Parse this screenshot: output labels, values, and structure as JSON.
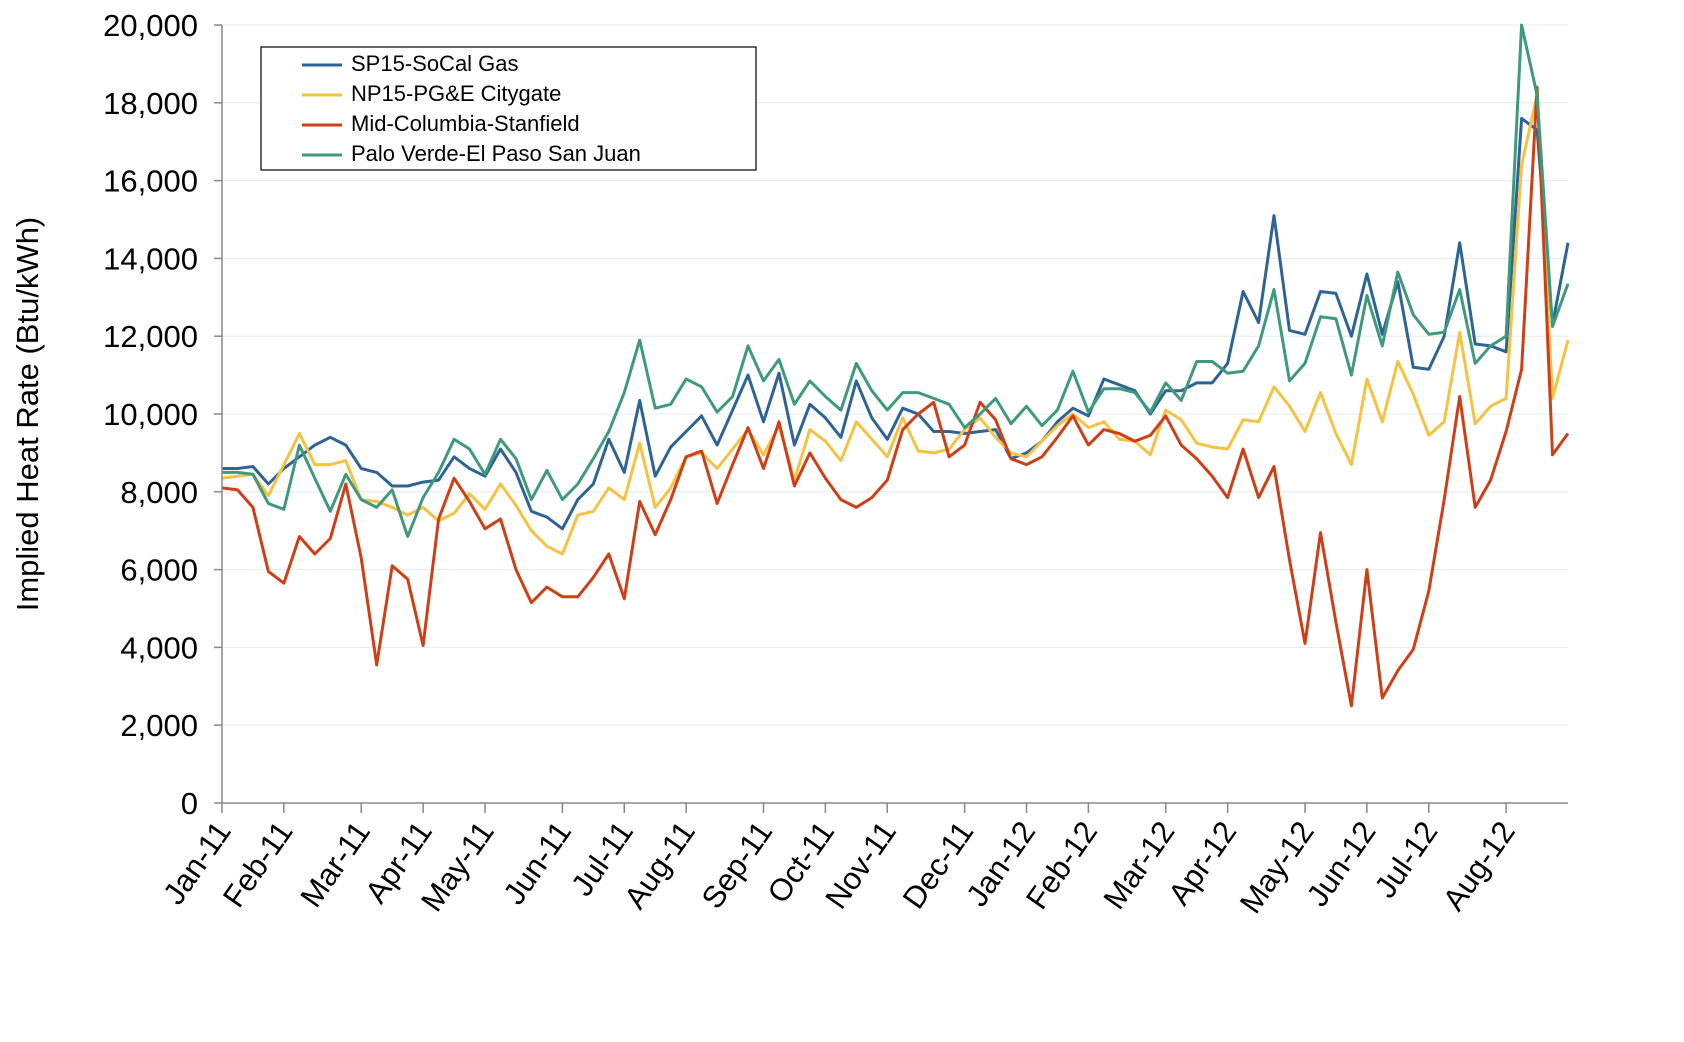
{
  "chart_data": {
    "type": "line",
    "y_label": "Implied Heat Rate (Btu/kWh)",
    "categories": [
      "Jan-11",
      null,
      null,
      null,
      "Feb-11",
      null,
      null,
      null,
      null,
      "Mar-11",
      null,
      null,
      null,
      "Apr-11",
      null,
      null,
      null,
      "May-11",
      null,
      null,
      null,
      null,
      "Jun-11",
      null,
      null,
      null,
      "Jul-11",
      null,
      null,
      null,
      "Aug-11",
      null,
      null,
      null,
      null,
      "Sep-11",
      null,
      null,
      null,
      "Oct-11",
      null,
      null,
      null,
      "Nov-11",
      null,
      null,
      null,
      null,
      "Dec-11",
      null,
      null,
      null,
      "Jan-12",
      null,
      null,
      null,
      "Feb-12",
      null,
      null,
      null,
      null,
      "Mar-12",
      null,
      null,
      null,
      "Apr-12",
      null,
      null,
      null,
      null,
      "May-12",
      null,
      null,
      null,
      "Jun-12",
      null,
      null,
      null,
      "Jul-12",
      null,
      null,
      null,
      null,
      "Aug-12",
      null,
      null,
      null,
      null
    ],
    "series": [
      {
        "name": "SP15-SoCal Gas",
        "color": "#2e6396",
        "values": [
          8600,
          8600,
          8650,
          8200,
          8600,
          8900,
          9200,
          9400,
          9200,
          8600,
          8500,
          8150,
          8150,
          8250,
          8300,
          8900,
          8600,
          8400,
          9100,
          8500,
          7500,
          7350,
          7050,
          7800,
          8200,
          9350,
          8500,
          10350,
          8400,
          9150,
          9550,
          9950,
          9200,
          10100,
          11000,
          9800,
          11050,
          9200,
          10250,
          9900,
          9400,
          10850,
          9900,
          9350,
          10150,
          10000,
          9550,
          9550,
          9500,
          9550,
          9600,
          8850,
          9000,
          9300,
          9800,
          10150,
          9950,
          10900,
          10750,
          10600,
          10000,
          10600,
          10600,
          10800,
          10800,
          11300,
          13150,
          12350,
          15100,
          12150,
          12050,
          13150,
          13100,
          12000,
          13600,
          12050,
          13400,
          11200,
          11150,
          12000,
          14400,
          11800,
          11750,
          11600,
          17600,
          17300,
          12300,
          14400
        ]
      },
      {
        "name": "NP15-PG&E Citygate",
        "color": "#f5c242",
        "values": [
          8350,
          8400,
          8450,
          7900,
          8700,
          9500,
          8700,
          8700,
          8800,
          7800,
          7750,
          7600,
          7400,
          7600,
          7250,
          7450,
          7950,
          7550,
          8200,
          7650,
          7000,
          6600,
          6400,
          7400,
          7500,
          8100,
          7800,
          9250,
          7600,
          8100,
          8900,
          9000,
          8600,
          9100,
          9600,
          8950,
          9700,
          8300,
          9600,
          9300,
          8800,
          9800,
          9350,
          8900,
          9900,
          9050,
          9000,
          9100,
          9600,
          9900,
          9400,
          9000,
          8900,
          9300,
          9700,
          10000,
          9650,
          9800,
          9350,
          9300,
          8950,
          10100,
          9850,
          9250,
          9150,
          9100,
          9850,
          9800,
          10700,
          10200,
          9550,
          10550,
          9500,
          8700,
          10900,
          9800,
          11350,
          10500,
          9450,
          9800,
          12100,
          9750,
          10200,
          10400,
          16400,
          18200,
          10400,
          11900
        ]
      },
      {
        "name": "Mid-Columbia-Stanfield",
        "color": "#cf3f17",
        "values": [
          8100,
          8050,
          7600,
          5950,
          5650,
          6850,
          6400,
          6800,
          8200,
          6300,
          3550,
          6100,
          5750,
          4050,
          7300,
          8350,
          7750,
          7050,
          7300,
          6000,
          5150,
          5550,
          5300,
          5300,
          5800,
          6400,
          5250,
          7750,
          6900,
          7800,
          8900,
          9050,
          7700,
          8700,
          9650,
          8600,
          9800,
          8150,
          9000,
          8350,
          7800,
          7600,
          7850,
          8300,
          9600,
          10000,
          10300,
          8900,
          9200,
          10300,
          9850,
          8850,
          8700,
          8900,
          9400,
          9950,
          9200,
          9600,
          9500,
          9300,
          9450,
          9950,
          9200,
          8850,
          8400,
          7850,
          9100,
          7850,
          8650,
          6250,
          4100,
          6950,
          4650,
          2500,
          6000,
          2700,
          3400,
          3950,
          5450,
          7800,
          10450,
          7600,
          8300,
          9550,
          11150,
          18400,
          8950,
          9500
        ]
      },
      {
        "name": "Palo Verde-El Paso San Juan",
        "color": "#3f9a7c",
        "values": [
          8500,
          8500,
          8450,
          7700,
          7550,
          9200,
          8350,
          7500,
          8450,
          7800,
          7600,
          8050,
          6850,
          7850,
          8500,
          9350,
          9100,
          8450,
          9350,
          8850,
          7800,
          8550,
          7800,
          8200,
          8850,
          9550,
          10550,
          11900,
          10150,
          10250,
          10900,
          10700,
          10050,
          10450,
          11750,
          10850,
          11400,
          10250,
          10850,
          10450,
          10100,
          11300,
          10600,
          10100,
          10550,
          10550,
          10400,
          10250,
          9650,
          10000,
          10400,
          9750,
          10200,
          9700,
          10100,
          11100,
          10050,
          10650,
          10650,
          10550,
          10050,
          10800,
          10350,
          11350,
          11350,
          11050,
          11100,
          11750,
          13200,
          10850,
          11300,
          12500,
          12450,
          11000,
          13050,
          11750,
          13650,
          12550,
          12050,
          12100,
          13200,
          11300,
          11750,
          12000,
          20000,
          18200,
          12250,
          13350
        ]
      }
    ],
    "ylim": [
      0,
      20000
    ],
    "yticks": [
      0,
      {
        "value": 2000,
        "label": "2,000"
      },
      {
        "value": 4000,
        "label": "4,000"
      },
      {
        "value": 6000,
        "label": "6,000"
      },
      {
        "value": 8000,
        "label": "8,000"
      },
      {
        "value": 10000,
        "label": "10,000"
      },
      {
        "value": 12000,
        "label": "12,000"
      },
      {
        "value": 14000,
        "label": "14,000"
      },
      {
        "value": 16000,
        "label": "16,000"
      },
      {
        "value": 18000,
        "label": "18,000"
      },
      {
        "value": 20000,
        "label": "20,000"
      }
    ],
    "grid": true,
    "legend": "upper left"
  }
}
